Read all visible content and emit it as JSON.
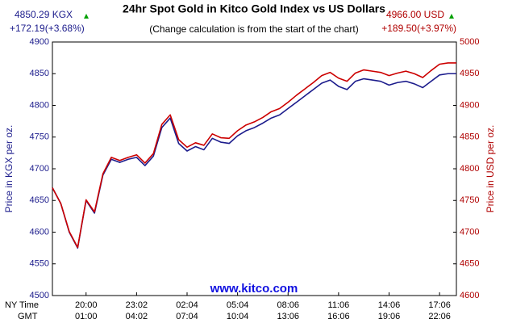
{
  "chart_data": {
    "type": "line",
    "title": "24hr Spot Gold in Kitco Gold Index vs US Dollars",
    "subtitle": "(Change calculation is from the start of the chart)",
    "left_quote": {
      "price": "4850.29 KGX",
      "change": "+172.19(+3.68%)"
    },
    "right_quote": {
      "price": "4966.00 USD",
      "change": "+189.50(+3.97%)"
    },
    "ylabel": "Price in KGX per oz.",
    "y2label": "Price in USD per oz.",
    "watermark": "www.kitco.com",
    "x_row_labels": [
      "NY Time",
      "GMT"
    ],
    "categories": [
      null,
      null,
      null,
      null,
      "20:00",
      null,
      null,
      null,
      null,
      null,
      "23:02",
      null,
      null,
      null,
      null,
      null,
      "02:04",
      null,
      null,
      null,
      null,
      null,
      "05:04",
      null,
      null,
      null,
      null,
      null,
      "08:06",
      null,
      null,
      null,
      null,
      null,
      "11:06",
      null,
      null,
      null,
      null,
      null,
      "14:06",
      null,
      null,
      null,
      null,
      null,
      "17:06",
      null,
      null
    ],
    "categories_gmt": [
      null,
      null,
      null,
      null,
      "01:00",
      null,
      null,
      null,
      null,
      null,
      "04:02",
      null,
      null,
      null,
      null,
      null,
      "07:04",
      null,
      null,
      null,
      null,
      null,
      "10:04",
      null,
      null,
      null,
      null,
      null,
      "13:06",
      null,
      null,
      null,
      null,
      null,
      "16:06",
      null,
      null,
      null,
      null,
      null,
      "19:06",
      null,
      null,
      null,
      null,
      null,
      "22:06",
      null,
      null
    ],
    "ylim": [
      4500,
      4900
    ],
    "yticks": [
      4500,
      4550,
      4600,
      4650,
      4700,
      4750,
      4800,
      4850,
      4900
    ],
    "y2lim": [
      4600,
      5000
    ],
    "y2ticks": [
      4600,
      4650,
      4700,
      4750,
      4800,
      4850,
      4900,
      4950,
      5000
    ],
    "ycolor": "#1c1c8c",
    "y2color": "#b00000",
    "series": [
      {
        "name": "KGX",
        "color": "#1c1c8c",
        "axis": "y",
        "values": [
          4670,
          4645,
          4600,
          4575,
          4650,
          4630,
          4690,
          4715,
          4710,
          4715,
          4718,
          4705,
          4720,
          4765,
          4780,
          4740,
          4728,
          4735,
          4730,
          4748,
          4742,
          4740,
          4752,
          4760,
          4765,
          4772,
          4780,
          4785,
          4795,
          4805,
          4815,
          4825,
          4835,
          4840,
          4830,
          4825,
          4838,
          4842,
          4840,
          4838,
          4832,
          4836,
          4838,
          4834,
          4828,
          4838,
          4848,
          4850,
          4850
        ]
      },
      {
        "name": "USD",
        "color": "#cc0000",
        "axis": "y2",
        "values": [
          4770,
          4745,
          4701,
          4676,
          4751,
          4732,
          4792,
          4818,
          4813,
          4818,
          4822,
          4809,
          4824,
          4870,
          4885,
          4846,
          4834,
          4841,
          4837,
          4855,
          4849,
          4848,
          4860,
          4869,
          4874,
          4881,
          4890,
          4895,
          4905,
          4916,
          4926,
          4936,
          4947,
          4952,
          4943,
          4938,
          4951,
          4956,
          4954,
          4952,
          4947,
          4951,
          4954,
          4950,
          4944,
          4955,
          4965,
          4967,
          4967
        ]
      }
    ]
  }
}
